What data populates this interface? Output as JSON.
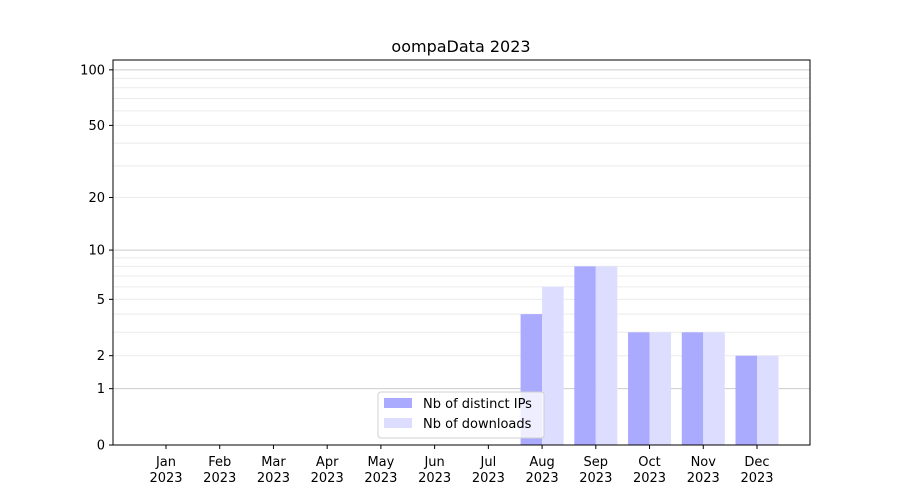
{
  "chart_data": {
    "type": "bar",
    "title": "oompaData 2023",
    "xlabel": "",
    "ylabel": "",
    "yscale": "log(1+y)",
    "ylim": [
      0,
      113
    ],
    "yticks": [
      0,
      1,
      2,
      5,
      10,
      20,
      50,
      100
    ],
    "grid": "horizontal, major and minor",
    "legend_position": "bottom-center",
    "categories": [
      "Jan\n2023",
      "Feb\n2023",
      "Mar\n2023",
      "Apr\n2023",
      "May\n2023",
      "Jun\n2023",
      "Jul\n2023",
      "Aug\n2023",
      "Sep\n2023",
      "Oct\n2023",
      "Nov\n2023",
      "Dec\n2023"
    ],
    "series": [
      {
        "name": "Nb of distinct IPs",
        "color": "#aaaaff",
        "values": [
          0,
          0,
          0,
          0,
          0,
          0,
          0,
          4,
          8,
          3,
          3,
          2
        ]
      },
      {
        "name": "Nb of downloads",
        "color": "#ddddff",
        "values": [
          0,
          0,
          0,
          0,
          0,
          0,
          0,
          6,
          8,
          3,
          3,
          2
        ]
      }
    ]
  }
}
